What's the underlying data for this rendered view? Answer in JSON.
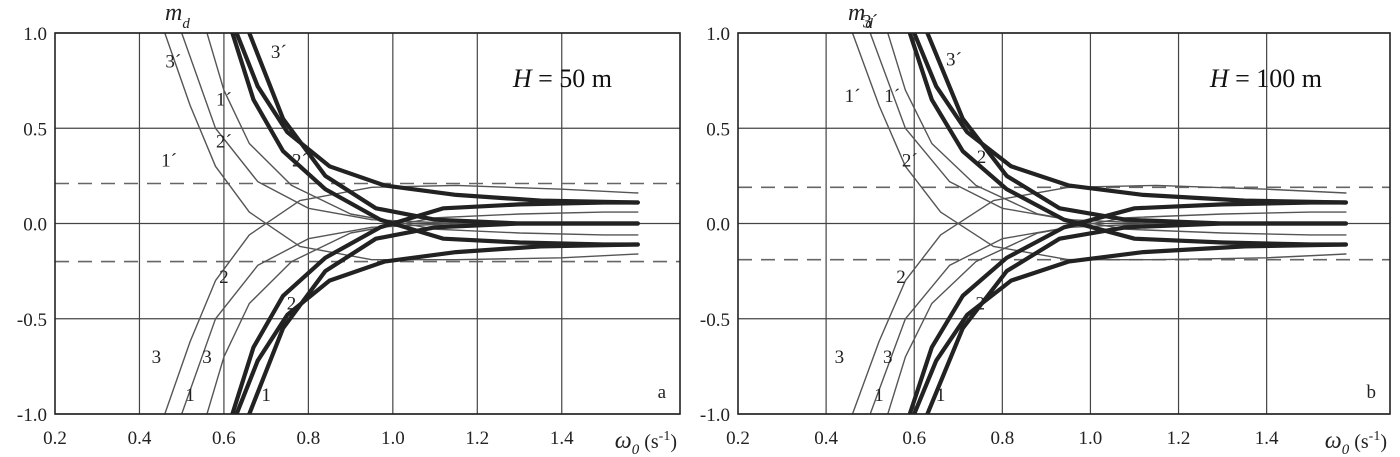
{
  "chart_data": [
    {
      "type": "line",
      "panel_label": "a",
      "annotation": {
        "var": "H",
        "eq": " = ",
        "value": "50 m"
      },
      "ylabel": {
        "main": "m",
        "sub": "d"
      },
      "xlabel": {
        "main": "ω",
        "sub": "0",
        "unit": " (s",
        "exp": "-1",
        "close": ")"
      },
      "xlim": [
        0.2,
        1.68
      ],
      "ylim": [
        -1.0,
        1.0
      ],
      "xticks": [
        "0.2",
        "0.4",
        "0.6",
        "0.8",
        "1.0",
        "1.2",
        "1.4"
      ],
      "yticks": [
        "1.0",
        "0.5",
        "0.0",
        "-0.5",
        "-1.0"
      ],
      "dashed_levels": [
        0.21,
        -0.2
      ],
      "grid": true,
      "curves": {
        "thin": [
          {
            "x": [
              0.46,
              0.52,
              0.58,
              0.66,
              0.78,
              0.95,
              1.15,
              1.4,
              1.58
            ],
            "y": [
              1.0,
              0.62,
              0.3,
              0.06,
              -0.12,
              -0.19,
              -0.19,
              -0.18,
              -0.16
            ]
          },
          {
            "x": [
              0.56,
              0.6,
              0.66,
              0.76,
              0.9,
              1.1,
              1.3,
              1.5,
              1.58
            ],
            "y": [
              1.0,
              0.7,
              0.42,
              0.2,
              0.05,
              -0.03,
              -0.05,
              -0.06,
              -0.06
            ]
          },
          {
            "x": [
              0.46,
              0.52,
              0.58,
              0.66,
              0.78,
              0.95,
              1.15,
              1.4,
              1.58
            ],
            "y": [
              -1.0,
              -0.62,
              -0.3,
              -0.06,
              0.12,
              0.19,
              0.2,
              0.18,
              0.16
            ]
          },
          {
            "x": [
              0.56,
              0.6,
              0.66,
              0.76,
              0.9,
              1.1,
              1.3,
              1.5,
              1.58
            ],
            "y": [
              -1.0,
              -0.7,
              -0.42,
              -0.2,
              -0.05,
              0.03,
              0.05,
              0.06,
              0.06
            ]
          },
          {
            "x": [
              0.5,
              0.58,
              0.68,
              0.8,
              0.95,
              1.15,
              1.4,
              1.58
            ],
            "y": [
              1.0,
              0.5,
              0.22,
              0.08,
              0.02,
              0.0,
              0.0,
              0.0
            ]
          },
          {
            "x": [
              0.5,
              0.58,
              0.68,
              0.8,
              0.95,
              1.15,
              1.4,
              1.58
            ],
            "y": [
              -1.0,
              -0.5,
              -0.22,
              -0.08,
              -0.02,
              0.0,
              0.0,
              0.0
            ]
          }
        ],
        "thick": [
          {
            "x": [
              0.63,
              0.68,
              0.75,
              0.85,
              0.98,
              1.15,
              1.35,
              1.58
            ],
            "y": [
              1.0,
              0.72,
              0.48,
              0.3,
              0.2,
              0.15,
              0.12,
              0.11
            ]
          },
          {
            "x": [
              0.62,
              0.67,
              0.74,
              0.84,
              0.97,
              1.12,
              1.3,
              1.5,
              1.58
            ],
            "y": [
              1.0,
              0.65,
              0.38,
              0.18,
              0.02,
              -0.08,
              -0.1,
              -0.11,
              -0.11
            ]
          },
          {
            "x": [
              0.63,
              0.68,
              0.75,
              0.85,
              0.98,
              1.15,
              1.35,
              1.58
            ],
            "y": [
              -1.0,
              -0.72,
              -0.48,
              -0.3,
              -0.2,
              -0.15,
              -0.12,
              -0.11
            ]
          },
          {
            "x": [
              0.62,
              0.67,
              0.74,
              0.84,
              0.97,
              1.12,
              1.3,
              1.5,
              1.58
            ],
            "y": [
              -1.0,
              -0.65,
              -0.38,
              -0.18,
              -0.02,
              0.08,
              0.1,
              0.11,
              0.11
            ]
          },
          {
            "x": [
              0.66,
              0.74,
              0.84,
              0.96,
              1.1,
              1.3,
              1.58
            ],
            "y": [
              1.0,
              0.55,
              0.25,
              0.08,
              0.02,
              0.0,
              0.0
            ]
          },
          {
            "x": [
              0.66,
              0.74,
              0.84,
              0.96,
              1.1,
              1.3,
              1.58
            ],
            "y": [
              -1.0,
              -0.55,
              -0.25,
              -0.08,
              -0.02,
              0.0,
              0.0
            ]
          }
        ]
      },
      "labels": [
        {
          "text": "3´",
          "x": 0.48,
          "y": 0.85
        },
        {
          "text": "3´",
          "x": 0.73,
          "y": 0.9
        },
        {
          "text": "1´",
          "x": 0.6,
          "y": 0.65
        },
        {
          "text": "1´",
          "x": 0.47,
          "y": 0.33
        },
        {
          "text": "2´",
          "x": 0.6,
          "y": 0.43
        },
        {
          "text": "2´",
          "x": 0.78,
          "y": 0.33
        },
        {
          "text": "2",
          "x": 0.6,
          "y": -0.28
        },
        {
          "text": "2",
          "x": 0.76,
          "y": -0.42
        },
        {
          "text": "3",
          "x": 0.44,
          "y": -0.7
        },
        {
          "text": "3",
          "x": 0.56,
          "y": -0.7
        },
        {
          "text": "1",
          "x": 0.52,
          "y": -0.9
        },
        {
          "text": "1",
          "x": 0.7,
          "y": -0.9
        }
      ]
    },
    {
      "type": "line",
      "panel_label": "b",
      "annotation": {
        "var": "H",
        "eq": " = ",
        "value": "100 m"
      },
      "ylabel": {
        "main": "m",
        "sub": "d"
      },
      "xlabel": {
        "main": "ω",
        "sub": "0",
        "unit": " (s",
        "exp": "-1",
        "close": ")"
      },
      "xlim": [
        0.2,
        1.68
      ],
      "ylim": [
        -1.0,
        1.0
      ],
      "xticks": [
        "0.2",
        "0.4",
        "0.6",
        "0.8",
        "1.0",
        "1.2",
        "1.4"
      ],
      "yticks": [
        "1.0",
        "0.5",
        "0.0",
        "-0.5",
        "-1.0"
      ],
      "dashed_levels": [
        0.19,
        -0.19
      ],
      "grid": true,
      "curves": {
        "thin": [
          {
            "x": [
              0.46,
              0.52,
              0.58,
              0.66,
              0.78,
              0.95,
              1.15,
              1.4,
              1.58
            ],
            "y": [
              1.0,
              0.62,
              0.3,
              0.06,
              -0.12,
              -0.19,
              -0.19,
              -0.18,
              -0.16
            ]
          },
          {
            "x": [
              0.54,
              0.58,
              0.64,
              0.74,
              0.88,
              1.08,
              1.3,
              1.5,
              1.58
            ],
            "y": [
              1.0,
              0.7,
              0.42,
              0.2,
              0.05,
              -0.03,
              -0.05,
              -0.06,
              -0.06
            ]
          },
          {
            "x": [
              0.46,
              0.52,
              0.58,
              0.66,
              0.78,
              0.95,
              1.15,
              1.4,
              1.58
            ],
            "y": [
              -1.0,
              -0.62,
              -0.3,
              -0.06,
              0.12,
              0.19,
              0.2,
              0.18,
              0.16
            ]
          },
          {
            "x": [
              0.54,
              0.58,
              0.64,
              0.74,
              0.88,
              1.08,
              1.3,
              1.5,
              1.58
            ],
            "y": [
              -1.0,
              -0.7,
              -0.42,
              -0.2,
              -0.05,
              0.03,
              0.05,
              0.06,
              0.06
            ]
          },
          {
            "x": [
              0.5,
              0.58,
              0.68,
              0.8,
              0.95,
              1.15,
              1.4,
              1.58
            ],
            "y": [
              1.0,
              0.5,
              0.22,
              0.08,
              0.02,
              0.0,
              0.0,
              0.0
            ]
          },
          {
            "x": [
              0.5,
              0.58,
              0.68,
              0.8,
              0.95,
              1.15,
              1.4,
              1.58
            ],
            "y": [
              -1.0,
              -0.5,
              -0.22,
              -0.08,
              -0.02,
              0.0,
              0.0,
              0.0
            ]
          }
        ],
        "thick": [
          {
            "x": [
              0.6,
              0.65,
              0.72,
              0.82,
              0.95,
              1.12,
              1.35,
              1.58
            ],
            "y": [
              1.0,
              0.72,
              0.48,
              0.3,
              0.2,
              0.15,
              0.12,
              0.11
            ]
          },
          {
            "x": [
              0.59,
              0.64,
              0.71,
              0.81,
              0.94,
              1.1,
              1.3,
              1.5,
              1.58
            ],
            "y": [
              1.0,
              0.65,
              0.38,
              0.18,
              0.02,
              -0.08,
              -0.1,
              -0.11,
              -0.11
            ]
          },
          {
            "x": [
              0.6,
              0.65,
              0.72,
              0.82,
              0.95,
              1.12,
              1.35,
              1.58
            ],
            "y": [
              -1.0,
              -0.72,
              -0.48,
              -0.3,
              -0.2,
              -0.15,
              -0.12,
              -0.11
            ]
          },
          {
            "x": [
              0.59,
              0.64,
              0.71,
              0.81,
              0.94,
              1.1,
              1.3,
              1.5,
              1.58
            ],
            "y": [
              -1.0,
              -0.65,
              -0.38,
              -0.18,
              -0.02,
              0.08,
              0.1,
              0.11,
              0.11
            ]
          },
          {
            "x": [
              0.63,
              0.71,
              0.81,
              0.93,
              1.08,
              1.3,
              1.58
            ],
            "y": [
              1.0,
              0.55,
              0.25,
              0.08,
              0.02,
              0.0,
              0.0
            ]
          },
          {
            "x": [
              0.63,
              0.71,
              0.81,
              0.93,
              1.08,
              1.3,
              1.58
            ],
            "y": [
              -1.0,
              -0.55,
              -0.25,
              -0.08,
              -0.02,
              0.0,
              0.0
            ]
          }
        ]
      },
      "labels": [
        {
          "text": "3´",
          "x": 0.5,
          "y": 1.06
        },
        {
          "text": "3´",
          "x": 0.69,
          "y": 0.86
        },
        {
          "text": "1´",
          "x": 0.46,
          "y": 0.67
        },
        {
          "text": "1´",
          "x": 0.55,
          "y": 0.67
        },
        {
          "text": "2´",
          "x": 0.59,
          "y": 0.33
        },
        {
          "text": "2´",
          "x": 0.76,
          "y": 0.35
        },
        {
          "text": "2",
          "x": 0.57,
          "y": -0.28
        },
        {
          "text": "2",
          "x": 0.75,
          "y": -0.42
        },
        {
          "text": "3",
          "x": 0.43,
          "y": -0.7
        },
        {
          "text": "3",
          "x": 0.54,
          "y": -0.7
        },
        {
          "text": "1",
          "x": 0.52,
          "y": -0.9
        },
        {
          "text": "1",
          "x": 0.66,
          "y": -0.9
        }
      ]
    }
  ]
}
